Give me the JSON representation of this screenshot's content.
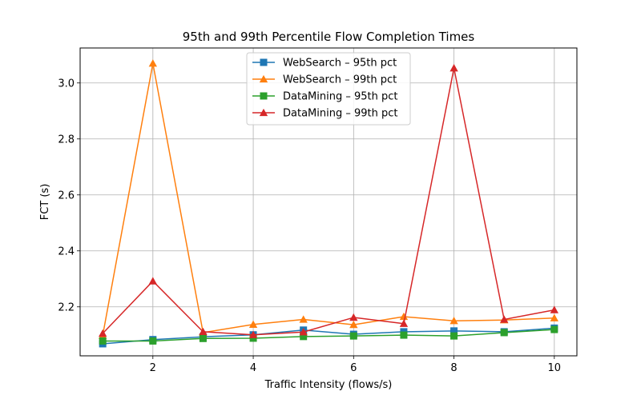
{
  "chart_data": {
    "type": "line",
    "title": "95th and 99th Percentile Flow Completion Times",
    "xlabel": "Traffic Intensity (flows/s)",
    "ylabel": "FCT (s)",
    "x": [
      1,
      2,
      3,
      4,
      5,
      6,
      7,
      8,
      9,
      10
    ],
    "xlim": [
      0.55,
      10.45
    ],
    "ylim": [
      2.025,
      3.125
    ],
    "xticks": [
      2,
      4,
      6,
      8,
      10
    ],
    "yticks": [
      2.2,
      2.4,
      2.6,
      2.8,
      3.0
    ],
    "xtick_labels": [
      "2",
      "4",
      "6",
      "8",
      "10"
    ],
    "ytick_labels": [
      "2.2",
      "2.4",
      "2.6",
      "2.8",
      "3.0"
    ],
    "grid": true,
    "legend_position": "top-center",
    "series": [
      {
        "name": "WebSearch – 95th pct",
        "color": "#1f77b4",
        "marker": "square",
        "values": [
          2.068,
          2.083,
          2.093,
          2.1,
          2.117,
          2.102,
          2.111,
          2.114,
          2.111,
          2.124
        ]
      },
      {
        "name": "WebSearch – 99th pct",
        "color": "#ff7f0e",
        "marker": "triangle",
        "values": [
          2.098,
          3.07,
          2.108,
          2.137,
          2.155,
          2.136,
          2.165,
          2.15,
          2.153,
          2.16
        ]
      },
      {
        "name": "DataMining – 95th pct",
        "color": "#2ca02c",
        "marker": "square",
        "values": [
          2.078,
          2.078,
          2.087,
          2.088,
          2.094,
          2.096,
          2.099,
          2.096,
          2.108,
          2.119
        ]
      },
      {
        "name": "DataMining – 99th pct",
        "color": "#d62728",
        "marker": "triangle",
        "values": [
          2.105,
          2.292,
          2.111,
          2.1,
          2.11,
          2.162,
          2.14,
          3.053,
          2.155,
          2.189
        ]
      }
    ]
  }
}
